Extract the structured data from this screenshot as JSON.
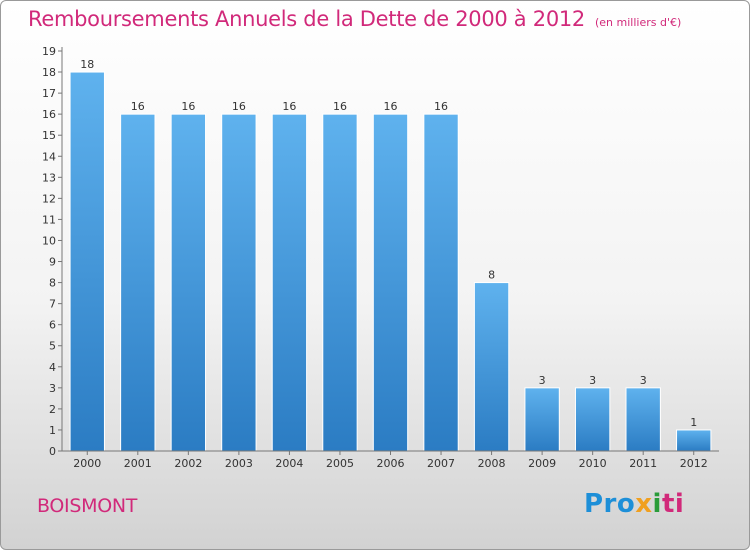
{
  "chart_data": {
    "type": "bar",
    "title": "Remboursements Annuels de la Dette de 2000 à 2012",
    "unit_note": "(en milliers d'€)",
    "categories": [
      "2000",
      "2001",
      "2002",
      "2003",
      "2004",
      "2005",
      "2006",
      "2007",
      "2008",
      "2009",
      "2010",
      "2011",
      "2012"
    ],
    "values": [
      18,
      16,
      16,
      16,
      16,
      16,
      16,
      16,
      8,
      3,
      3,
      3,
      1
    ],
    "ylim": [
      0,
      19
    ],
    "yticks": [
      "0",
      "1",
      "2",
      "3",
      "4",
      "5",
      "6",
      "7",
      "8",
      "9",
      "10",
      "11",
      "12",
      "13",
      "14",
      "15",
      "16",
      "17",
      "18",
      "19"
    ],
    "xlabel": "",
    "ylabel": "",
    "grid": false,
    "bar_color": "#4a9fe0"
  },
  "footer": {
    "town": "BOISMONT",
    "logo_parts": [
      "Pro",
      "x",
      "i",
      "ti"
    ]
  }
}
